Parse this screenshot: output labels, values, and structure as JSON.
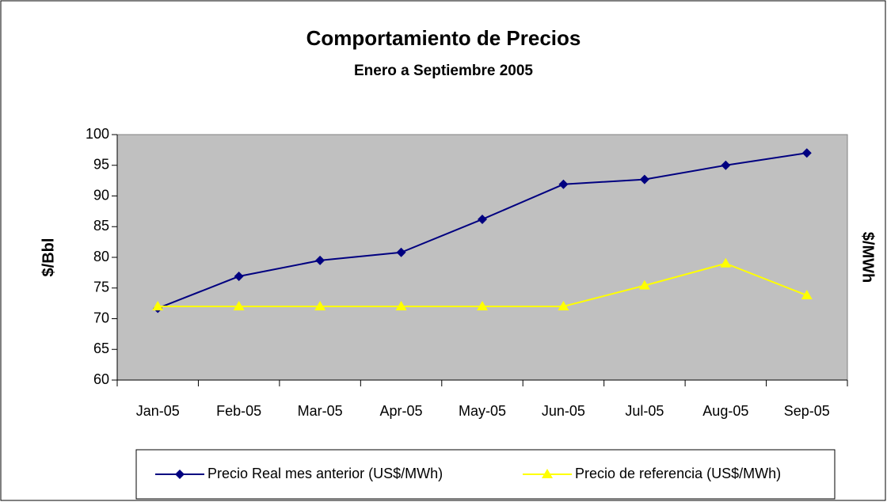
{
  "chart_data": {
    "type": "line",
    "title": "Comportamiento de Precios",
    "subtitle": "Enero a Septiembre 2005",
    "y_label": "$/Bbl",
    "y2_label": "$/MWh",
    "categories": [
      "Jan-05",
      "Feb-05",
      "Mar-05",
      "Apr-05",
      "May-05",
      "Jun-05",
      "Jul-05",
      "Aug-05",
      "Sep-05"
    ],
    "series": [
      {
        "name": "Precio  Real mes anterior (US$/MWh)",
        "color": "#000080",
        "marker": "diamond",
        "values": [
          71.7,
          76.9,
          79.5,
          80.8,
          86.2,
          91.9,
          92.7,
          95.0,
          97.0
        ]
      },
      {
        "name": "Precio de referencia (US$/MWh)",
        "color": "#ffff00",
        "marker": "triangle",
        "values": [
          72,
          72,
          72,
          72,
          72,
          72,
          75.4,
          79.0,
          73.8
        ]
      }
    ],
    "ylim": [
      60,
      100
    ],
    "yticks": [
      60,
      65,
      70,
      75,
      80,
      85,
      90,
      95,
      100
    ],
    "plot_background": "#c0c0c0",
    "legend": "bottom"
  }
}
